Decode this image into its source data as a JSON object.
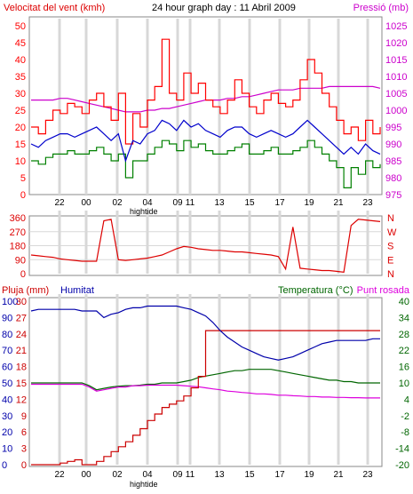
{
  "title": "24 hour graph day : 11 Abril 2009",
  "colors": {
    "wind": "#ff0000",
    "wind_avg": "#0000cc",
    "wind_low": "#008000",
    "pressure": "#cc00cc",
    "direction": "#dd0000",
    "rain": "#cc0000",
    "humidity": "#0000aa",
    "temperature": "#006600",
    "dewpoint": "#dd00dd",
    "grid": "#d8d8d8",
    "frame": "#888888"
  },
  "hour_labels": [
    "22",
    "00",
    "02",
    "04",
    "09",
    "11",
    "13",
    "15",
    "17",
    "19",
    "21",
    "23"
  ],
  "hightide_label": "hightide",
  "chart_data": [
    {
      "type": "line",
      "name": "wind-pressure",
      "left_label": "Velocitat del vent (kmh)",
      "right_label": "Pressió (mb)",
      "left_ticks": [
        "50",
        "45",
        "40",
        "35",
        "30",
        "25",
        "20",
        "15",
        "10",
        "5",
        "0"
      ],
      "right_ticks": [
        "1025",
        "1020",
        "1015",
        "1010",
        "1005",
        "1000",
        "995",
        "990",
        "985",
        "980",
        "975"
      ],
      "ylim_left": [
        0,
        50
      ],
      "ylim_right": [
        975,
        1025
      ],
      "series": [
        {
          "key": "gust",
          "values": [
            20,
            18,
            22,
            25,
            24,
            27,
            26,
            24,
            28,
            30,
            26,
            22,
            30,
            15,
            24,
            20,
            28,
            32,
            46,
            30,
            28,
            36,
            30,
            33,
            28,
            26,
            24,
            28,
            34,
            30,
            26,
            24,
            28,
            30,
            27,
            26,
            28,
            34,
            40,
            36,
            30,
            26,
            22,
            18,
            20,
            16,
            22,
            18,
            20
          ]
        },
        {
          "key": "average",
          "values": [
            15,
            14,
            16,
            17,
            18,
            18,
            17,
            18,
            19,
            20,
            18,
            16,
            18,
            10,
            16,
            15,
            18,
            19,
            22,
            21,
            19,
            22,
            20,
            21,
            19,
            18,
            17,
            19,
            20,
            20,
            18,
            17,
            18,
            19,
            18,
            17,
            18,
            20,
            22,
            20,
            18,
            16,
            14,
            12,
            14,
            12,
            15,
            13,
            12
          ]
        },
        {
          "key": "low",
          "values": [
            10,
            9,
            11,
            12,
            12,
            13,
            12,
            12,
            13,
            14,
            12,
            10,
            12,
            5,
            10,
            10,
            12,
            14,
            16,
            15,
            13,
            16,
            14,
            15,
            13,
            12,
            12,
            13,
            14,
            15,
            12,
            12,
            13,
            14,
            12,
            12,
            13,
            14,
            16,
            14,
            12,
            10,
            8,
            2,
            8,
            6,
            10,
            8,
            9
          ]
        },
        {
          "key": "pressure",
          "values": [
            1003,
            1003,
            1003,
            1003,
            1003.5,
            1003.5,
            1003,
            1002.5,
            1002,
            1001.5,
            1001,
            1000.5,
            1000,
            999.5,
            999.5,
            999.5,
            1000,
            1000,
            1000.5,
            1000.5,
            1001,
            1001.5,
            1002,
            1002.5,
            1003,
            1003,
            1003,
            1003.5,
            1003.5,
            1004,
            1004,
            1004.5,
            1005,
            1005.5,
            1006,
            1006,
            1006,
            1006.5,
            1006.5,
            1006.5,
            1006.5,
            1007,
            1007,
            1007,
            1007,
            1007,
            1007,
            1007,
            1006.5
          ]
        }
      ]
    },
    {
      "type": "line",
      "name": "wind-direction",
      "left_ticks": [
        "360",
        "270",
        "180",
        "90",
        "0"
      ],
      "right_ticks": [
        "N",
        "W",
        "S",
        "E",
        "N"
      ],
      "ylim": [
        0,
        360
      ],
      "series": [
        {
          "key": "direction",
          "values": [
            120,
            115,
            110,
            105,
            95,
            90,
            85,
            80,
            80,
            80,
            340,
            350,
            90,
            85,
            90,
            95,
            100,
            110,
            120,
            140,
            160,
            175,
            170,
            160,
            155,
            150,
            150,
            145,
            140,
            140,
            135,
            130,
            125,
            120,
            110,
            30,
            300,
            35,
            30,
            25,
            20,
            20,
            15,
            10,
            310,
            350,
            345,
            340,
            335
          ]
        }
      ]
    },
    {
      "type": "line",
      "name": "rain-humidity-temperature",
      "rain_label": "Pluja (mm)",
      "humidity_label": "Humitat",
      "temperature_label": "Temperatura (°C)",
      "dewpoint_label": "Punt rosada",
      "humidity_ticks": [
        "100",
        "90",
        "80",
        "70",
        "60",
        "50",
        "40",
        "30",
        "20",
        "10",
        "0"
      ],
      "rain_ticks": [
        "30",
        "27",
        "24",
        "21",
        "18",
        "15",
        "12",
        "9",
        "6",
        "3",
        "0"
      ],
      "temp_ticks": [
        "40",
        "34",
        "28",
        "22",
        "16",
        "10",
        "4",
        "-2",
        "-8",
        "-14",
        "-20"
      ],
      "ylim_humidity": [
        0,
        100
      ],
      "ylim_rain": [
        0,
        30
      ],
      "ylim_temp": [
        -20,
        40
      ],
      "series": [
        {
          "key": "humidity",
          "values": [
            94,
            95,
            95,
            95,
            95,
            95,
            95,
            94,
            94,
            94,
            90,
            92,
            93,
            95,
            96,
            96,
            97,
            97,
            97,
            97,
            97,
            96,
            95,
            93,
            91,
            87,
            82,
            78,
            75,
            72,
            70,
            68,
            66,
            65,
            64,
            65,
            66,
            68,
            70,
            72,
            74,
            75,
            76,
            76,
            76,
            76,
            76,
            77,
            77
          ]
        },
        {
          "key": "rain",
          "values": [
            0,
            0,
            0,
            0,
            0.3,
            0.6,
            0.9,
            0,
            0,
            0.6,
            1.5,
            2.4,
            3.3,
            4.2,
            5.4,
            6.6,
            8.1,
            9.3,
            10.5,
            11.1,
            11.7,
            12.6,
            14.1,
            16.2,
            24.6,
            24.6,
            24.6,
            24.6,
            24.6,
            24.6,
            24.6,
            24.6,
            24.6,
            24.6,
            24.6,
            24.6,
            24.6,
            24.6,
            24.6,
            24.6,
            24.6,
            24.6,
            24.6,
            24.6,
            24.6,
            24.6,
            24.6,
            24.6,
            24.6
          ]
        },
        {
          "key": "temperature",
          "values": [
            10,
            10,
            10,
            10,
            10,
            10,
            10,
            10,
            9,
            7.5,
            8,
            8.5,
            8.8,
            9,
            9,
            9.2,
            9.5,
            9.5,
            10,
            10,
            10,
            10.5,
            11,
            12,
            12.5,
            13,
            13.5,
            14,
            14.5,
            14.5,
            15,
            15,
            15,
            15,
            14.5,
            14,
            13.5,
            13,
            12.5,
            12,
            11.5,
            11,
            11,
            10.5,
            10.5,
            10,
            10,
            10,
            10
          ]
        },
        {
          "key": "dewpoint",
          "values": [
            9.5,
            9.5,
            9.5,
            9.5,
            9.5,
            9.5,
            9.5,
            9.5,
            8.5,
            7,
            7.5,
            8,
            8.5,
            8.5,
            9,
            9,
            9.2,
            9.2,
            9.2,
            9.2,
            9.2,
            9,
            8.8,
            8.6,
            8.2,
            7.8,
            7.5,
            7,
            6.8,
            6.5,
            6.3,
            6,
            6,
            5.8,
            5.5,
            5.5,
            5.3,
            5.2,
            5,
            5,
            4.8,
            4.8,
            4.7,
            4.7,
            4.6,
            4.6,
            4.5,
            4.5,
            4.5
          ]
        }
      ]
    }
  ]
}
